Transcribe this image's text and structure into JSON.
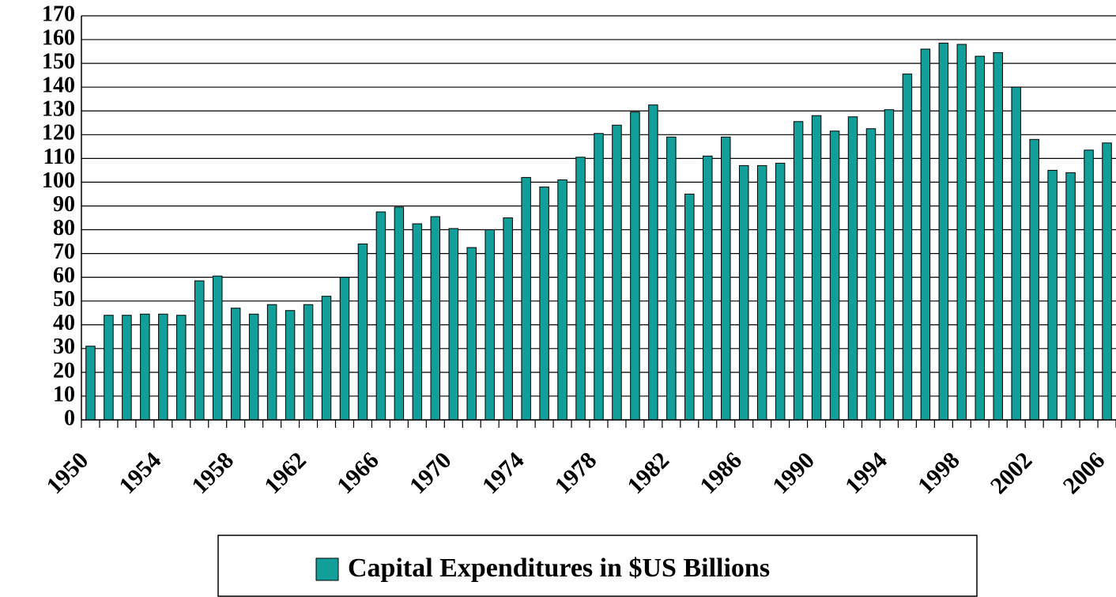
{
  "chart_data": {
    "type": "bar",
    "categories": [
      "1950",
      null,
      null,
      null,
      "1954",
      null,
      null,
      null,
      "1958",
      null,
      null,
      null,
      "1962",
      null,
      null,
      null,
      "1966",
      null,
      null,
      null,
      "1970",
      null,
      null,
      null,
      "1974",
      null,
      null,
      null,
      "1978",
      null,
      null,
      null,
      "1982",
      null,
      null,
      null,
      "1986",
      null,
      null,
      null,
      "1990",
      null,
      null,
      null,
      "1994",
      null,
      null,
      null,
      "1998",
      null,
      null,
      null,
      "2002",
      null,
      null,
      null,
      "2006"
    ],
    "series": [
      {
        "name": "Capital Expenditures in $US Billions",
        "color": "#129e99",
        "values": [
          31,
          44,
          44,
          44.5,
          44.5,
          44,
          58.5,
          60.5,
          47,
          44.5,
          48.5,
          46,
          48.5,
          52,
          60,
          74,
          87.5,
          89.5,
          82.5,
          85.5,
          80.5,
          72.5,
          80,
          85,
          102,
          98,
          101,
          110.5,
          120.5,
          124,
          129.5,
          132.5,
          119,
          95,
          111,
          119,
          107,
          107,
          108,
          125.5,
          128,
          121.5,
          127.5,
          122.5,
          130.5,
          145.5,
          156,
          158.5,
          158,
          153,
          154.5,
          140,
          118,
          105,
          104,
          113.5,
          116.5
        ]
      }
    ],
    "ylim": [
      0,
      170
    ],
    "yticks": [
      0,
      10,
      20,
      30,
      40,
      50,
      60,
      70,
      80,
      90,
      100,
      110,
      120,
      130,
      140,
      150,
      160,
      170
    ],
    "grid": true,
    "legend": "bottom"
  }
}
